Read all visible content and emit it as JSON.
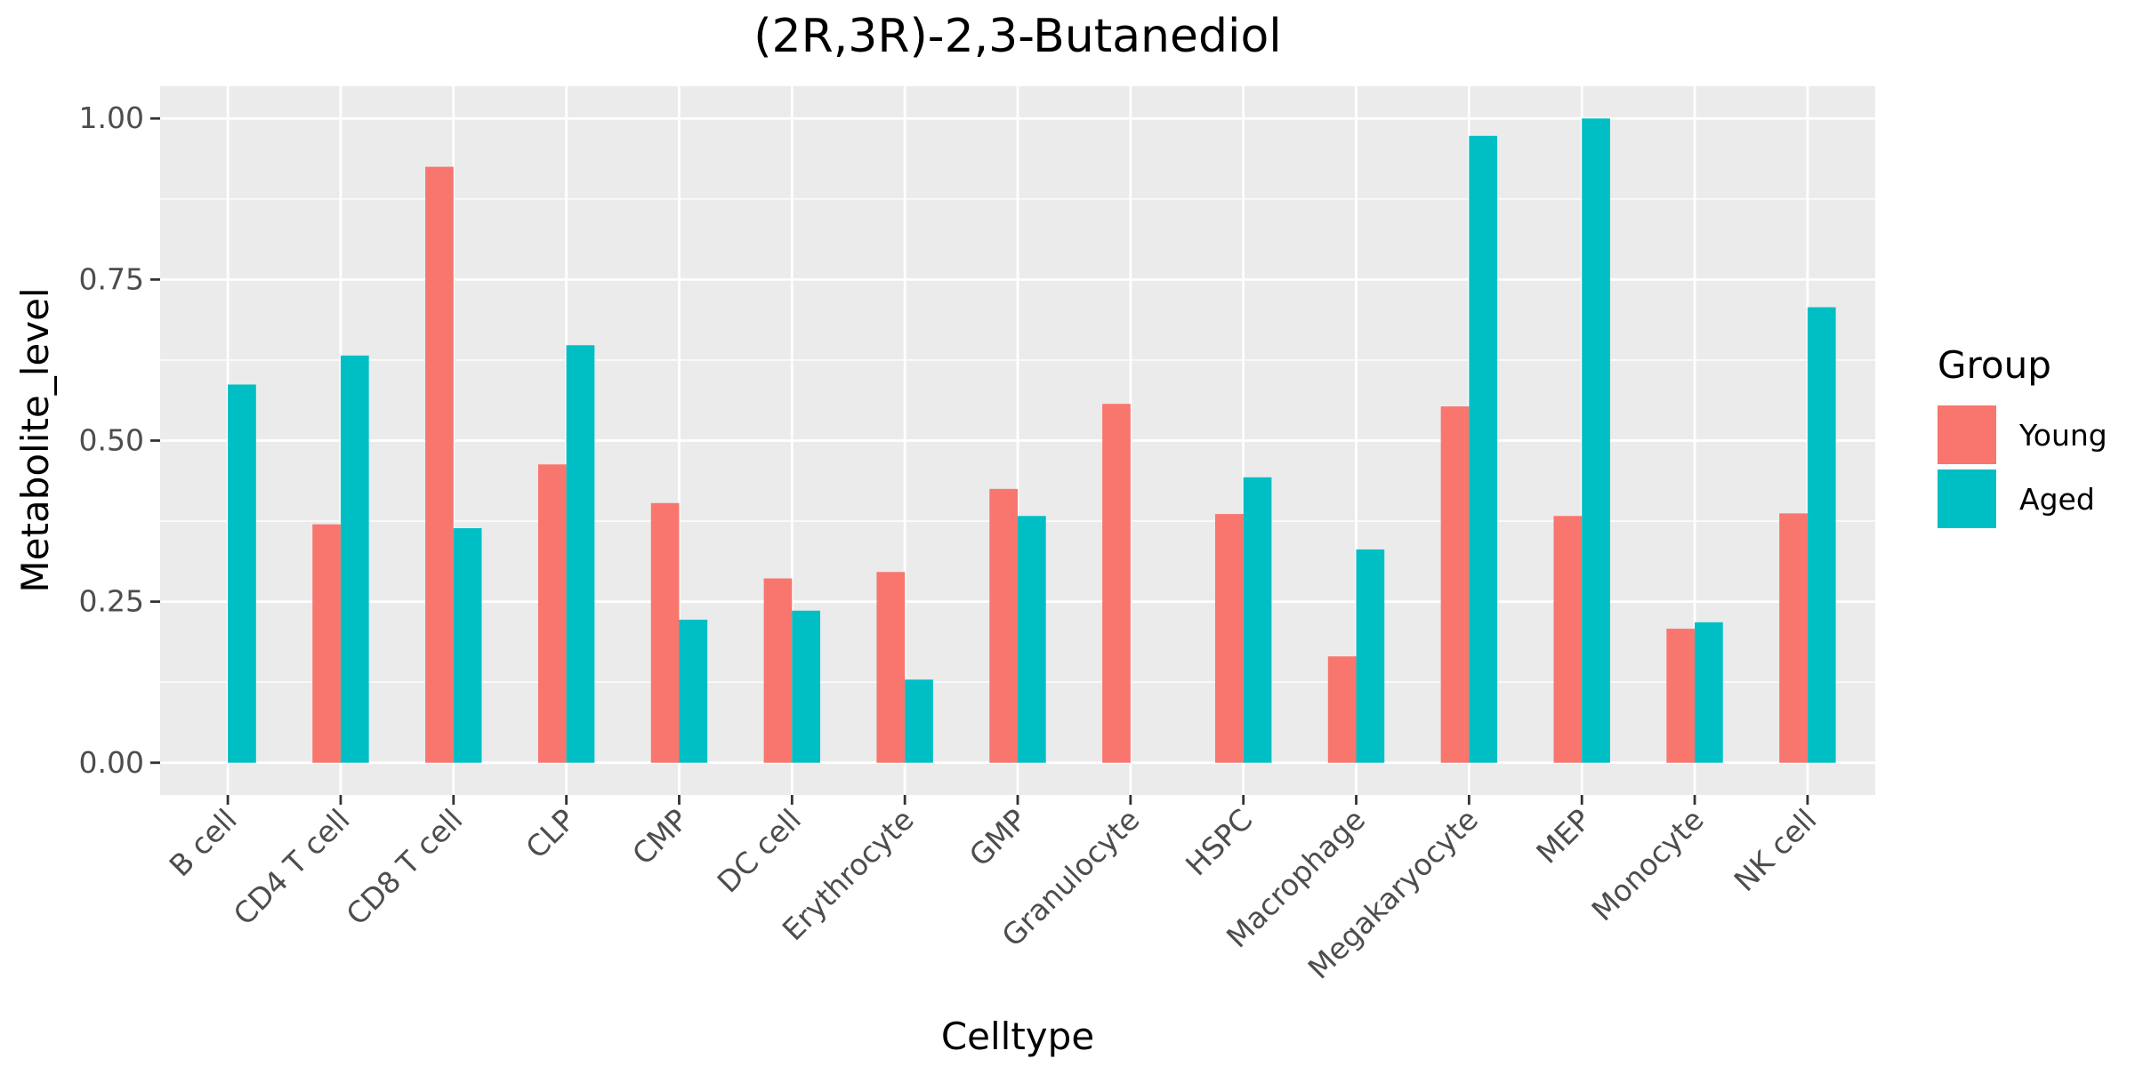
{
  "chart_data": {
    "type": "bar",
    "title": "(2R,3R)-2,3-Butanediol",
    "xlabel": "Celltype",
    "ylabel": "Metabolite_level",
    "ylim": [
      -0.05,
      1.05
    ],
    "yticks": [
      0.0,
      0.25,
      0.5,
      0.75,
      1.0
    ],
    "ytick_labels": [
      "0.00",
      "0.25",
      "0.50",
      "0.75",
      "1.00"
    ],
    "grid": true,
    "legend_position": "right",
    "legend_title": "Group",
    "categories": [
      "B cell",
      "CD4 T cell",
      "CD8 T cell",
      "CLP",
      "CMP",
      "DC cell",
      "Erythrocyte",
      "GMP",
      "Granulocyte",
      "HSPC",
      "Macrophage",
      "Megakaryocyte",
      "MEP",
      "Monocyte",
      "NK cell"
    ],
    "series": [
      {
        "name": "Young",
        "color": "#F8766D",
        "values": [
          null,
          0.37,
          0.925,
          0.463,
          0.403,
          0.286,
          0.296,
          0.425,
          0.557,
          0.386,
          0.165,
          0.553,
          0.383,
          0.208,
          0.387
        ]
      },
      {
        "name": "Aged",
        "color": "#00BFC4",
        "values": [
          0.587,
          0.632,
          0.364,
          0.648,
          0.222,
          0.236,
          0.129,
          0.383,
          null,
          0.443,
          0.331,
          0.973,
          1.0,
          0.218,
          0.707
        ]
      }
    ]
  }
}
